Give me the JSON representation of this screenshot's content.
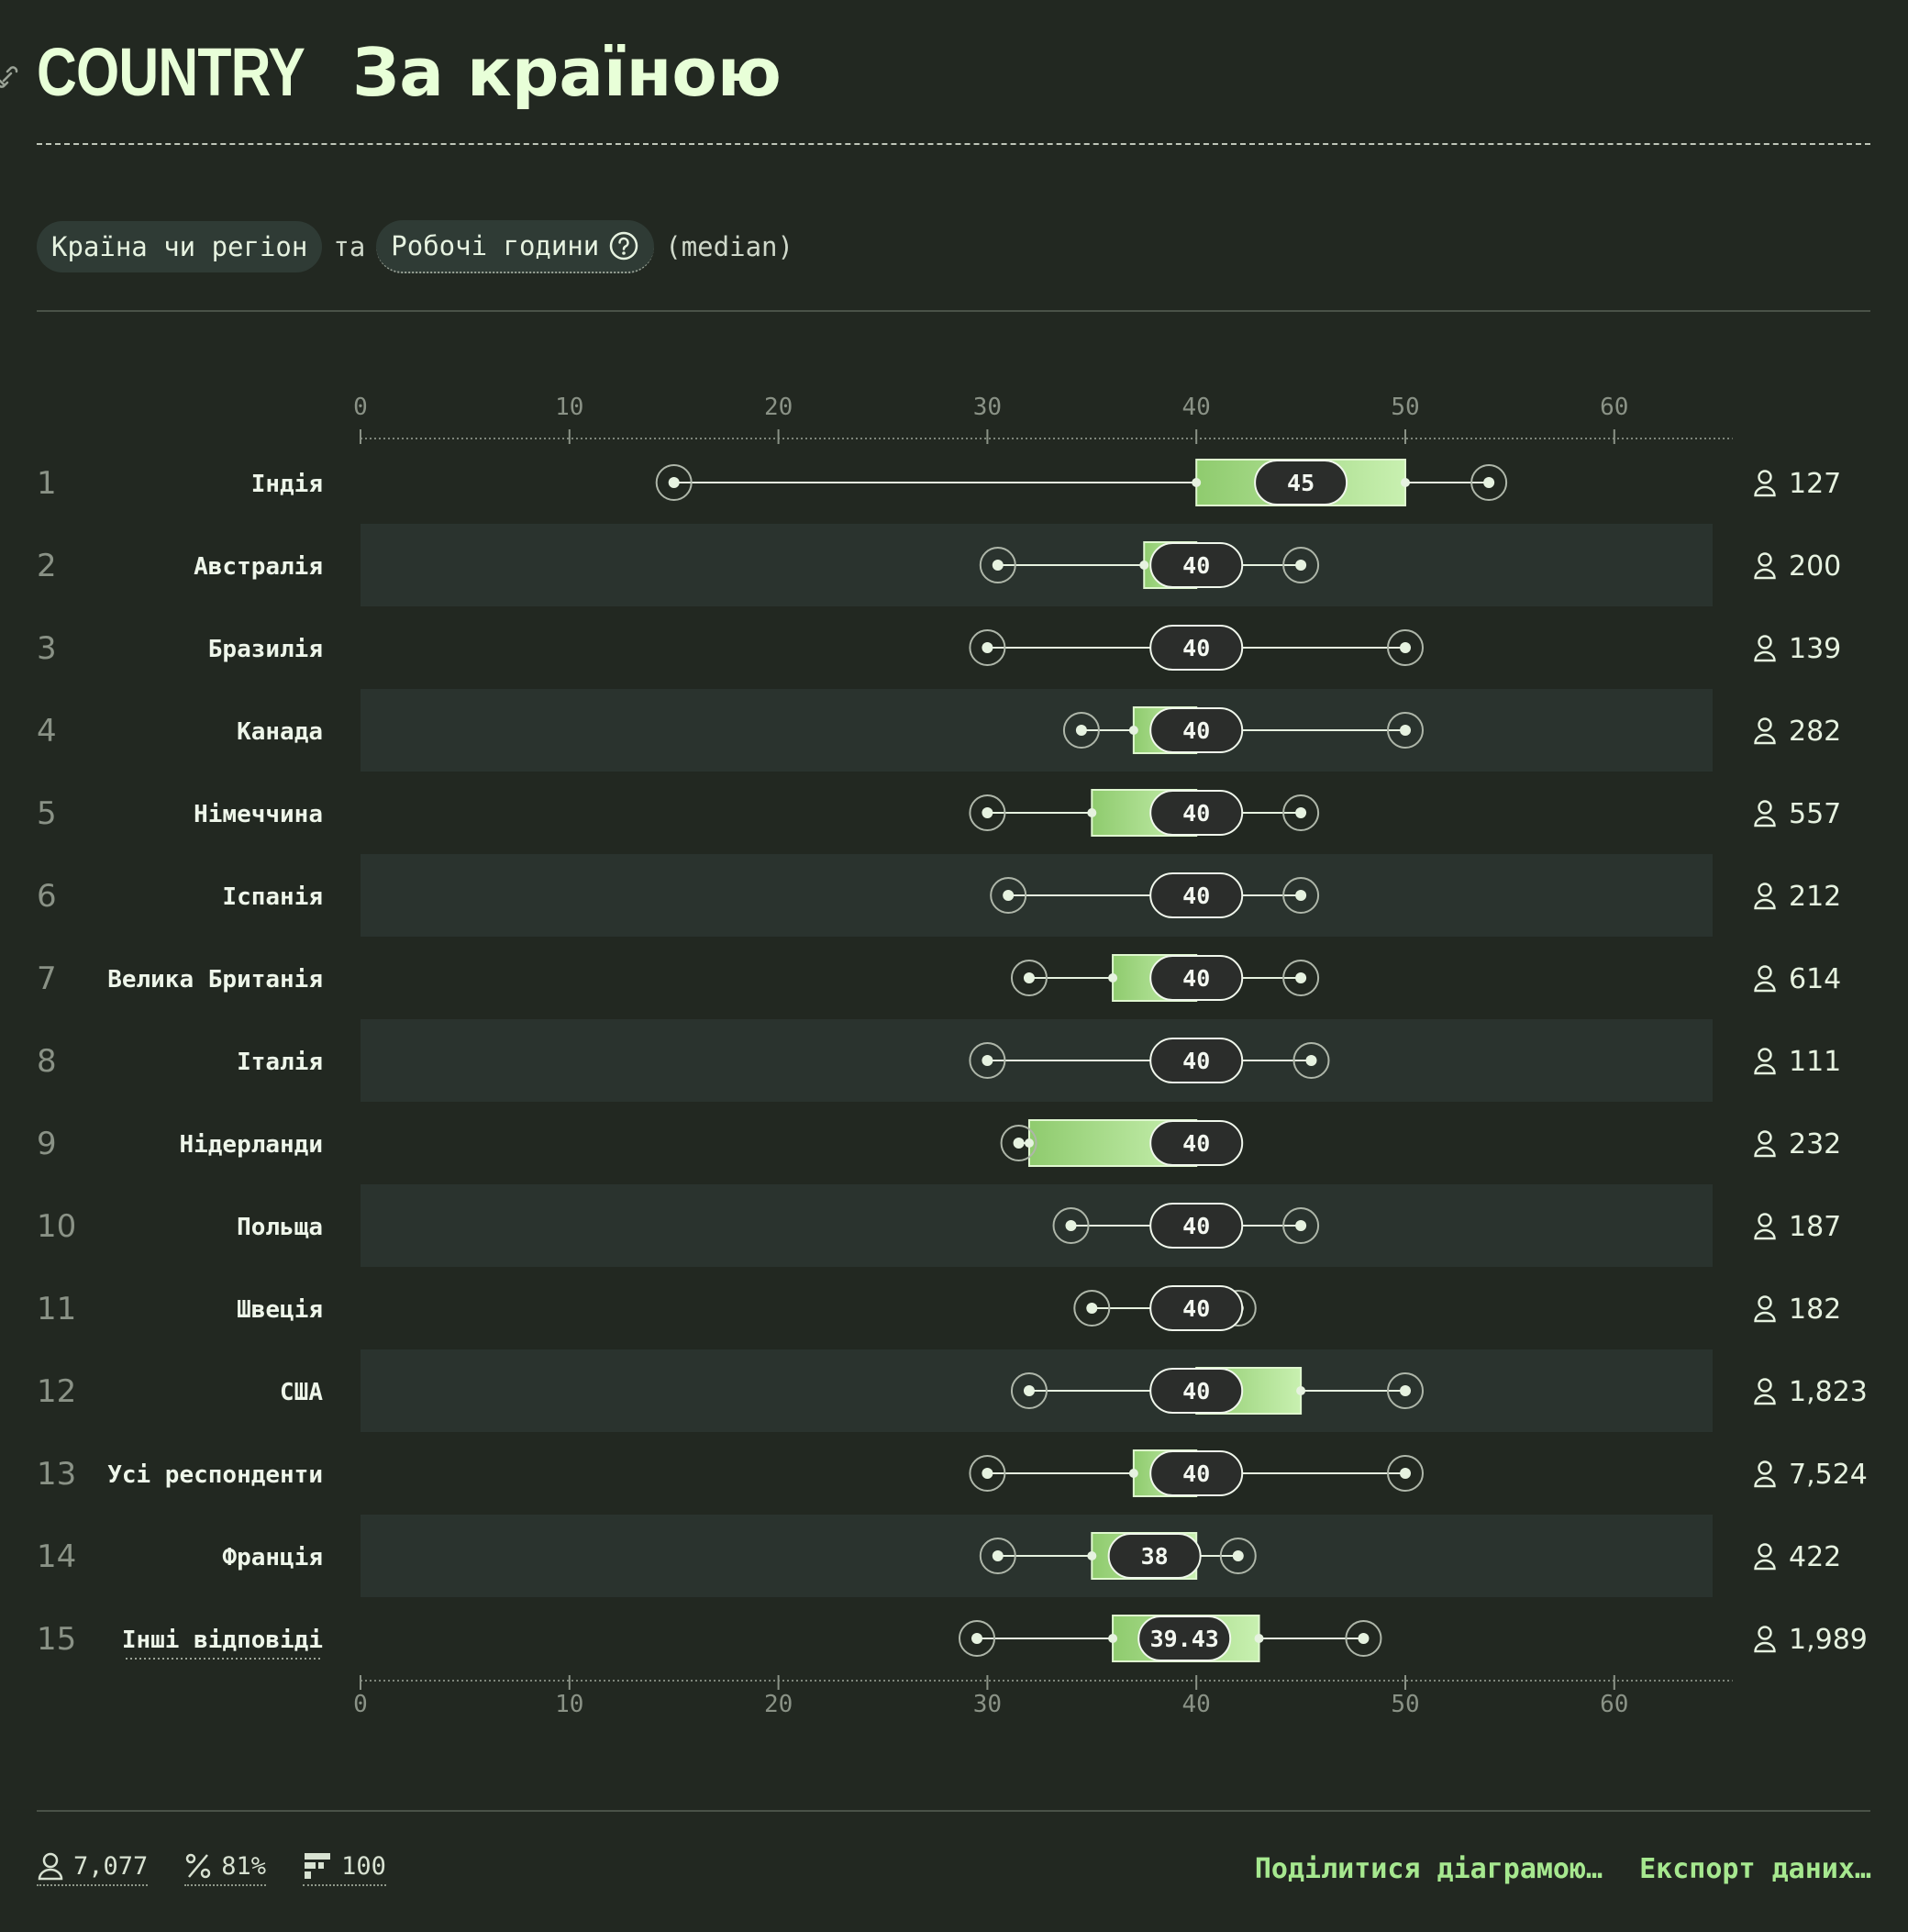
{
  "header": {
    "tag": "COUNTRY",
    "title": "За країною"
  },
  "filters": {
    "dimension": "Країна чи регіон",
    "connector": "та",
    "metric": "Робочі години",
    "stat": "(median)"
  },
  "chart_data": {
    "type": "box",
    "x_ticks": [
      0,
      10,
      20,
      30,
      40,
      50,
      60
    ],
    "xlim": [
      0,
      65
    ],
    "rows": [
      {
        "rank": "1",
        "label": "Індія",
        "min": 15,
        "q1": 40,
        "median": 45,
        "median_label": "45",
        "q3": 50,
        "max": 54,
        "count": "127"
      },
      {
        "rank": "2",
        "label": "Австралія",
        "min": 30.5,
        "q1": 37.5,
        "median": 40,
        "median_label": "40",
        "q3": 40,
        "max": 45,
        "count": "200"
      },
      {
        "rank": "3",
        "label": "Бразилія",
        "min": 30,
        "q1": 40,
        "median": 40,
        "median_label": "40",
        "q3": 40,
        "max": 50,
        "count": "139"
      },
      {
        "rank": "4",
        "label": "Канада",
        "min": 34.5,
        "q1": 37,
        "median": 40,
        "median_label": "40",
        "q3": 40,
        "max": 50,
        "count": "282"
      },
      {
        "rank": "5",
        "label": "Німеччина",
        "min": 30,
        "q1": 35,
        "median": 40,
        "median_label": "40",
        "q3": 40,
        "max": 45,
        "count": "557"
      },
      {
        "rank": "6",
        "label": "Іспанія",
        "min": 31,
        "q1": 40,
        "median": 40,
        "median_label": "40",
        "q3": 40,
        "max": 45,
        "count": "212"
      },
      {
        "rank": "7",
        "label": "Велика Британія",
        "min": 32,
        "q1": 36,
        "median": 40,
        "median_label": "40",
        "q3": 40,
        "max": 45,
        "count": "614"
      },
      {
        "rank": "8",
        "label": "Італія",
        "min": 30,
        "q1": 40,
        "median": 40,
        "median_label": "40",
        "q3": 40,
        "max": 45.5,
        "count": "111"
      },
      {
        "rank": "9",
        "label": "Нідерланди",
        "min": 31.5,
        "q1": 32,
        "median": 40,
        "median_label": "40",
        "q3": 40,
        "max": 40,
        "count": "232"
      },
      {
        "rank": "10",
        "label": "Польща",
        "min": 34,
        "q1": 40,
        "median": 40,
        "median_label": "40",
        "q3": 40,
        "max": 45,
        "count": "187"
      },
      {
        "rank": "11",
        "label": "Швеція",
        "min": 35,
        "q1": 40,
        "median": 40,
        "median_label": "40",
        "q3": 40,
        "max": 42,
        "count": "182"
      },
      {
        "rank": "12",
        "label": "США",
        "min": 32,
        "q1": 40,
        "median": 40,
        "median_label": "40",
        "q3": 45,
        "max": 50,
        "count": "1,823"
      },
      {
        "rank": "13",
        "label": "Усі респонденти",
        "min": 30,
        "q1": 37,
        "median": 40,
        "median_label": "40",
        "q3": 40,
        "max": 50,
        "count": "7,524"
      },
      {
        "rank": "14",
        "label": "Франція",
        "min": 30.5,
        "q1": 35,
        "median": 38,
        "median_label": "38",
        "q3": 40,
        "max": 42,
        "count": "422"
      },
      {
        "rank": "15",
        "label": "Інші відповіді",
        "min": 29.5,
        "q1": 36,
        "median": 39.43,
        "median_label": "39.43",
        "q3": 43,
        "max": 48,
        "count": "1,989"
      }
    ]
  },
  "footer": {
    "respondents": "7,077",
    "percent": "81%",
    "count": "100",
    "share": "Поділитися діаграмою…",
    "export": "Експорт даних…"
  },
  "colors": {
    "background": "#222821",
    "band": "#2a332e",
    "box_from": "#8fcb6e",
    "box_to": "#c8f0b0",
    "accent": "#a6e88f"
  },
  "icons": {
    "person": "person-icon",
    "percent": "percent-icon",
    "grid": "grid-icon",
    "help": "help-circle-icon",
    "link": "link-icon"
  }
}
